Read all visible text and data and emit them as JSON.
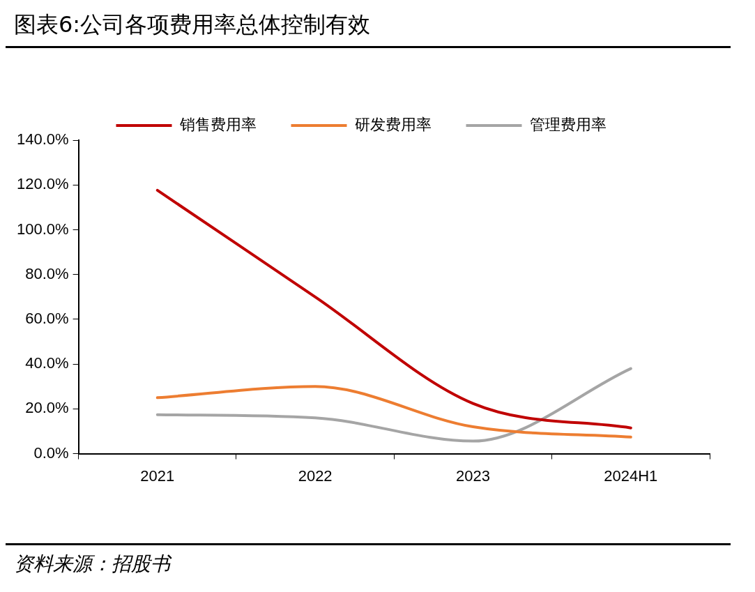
{
  "chart_data": {
    "type": "line",
    "title": "图表6:公司各项费用率总体控制有效",
    "annotations": [
      "资料来源：招股书"
    ],
    "categories": [
      "2021",
      "2022",
      "2023",
      "2024H1"
    ],
    "series": [
      {
        "name": "销售费用率",
        "color": "#c00000",
        "values": [
          117.6,
          70,
          22.4,
          11.5
        ]
      },
      {
        "name": "研发费用率",
        "color": "#ed7d31",
        "values": [
          25,
          30,
          12,
          7.4
        ]
      },
      {
        "name": "管理费用率",
        "color": "#a5a5a5",
        "values": [
          17.4,
          16,
          5.6,
          38
        ]
      }
    ],
    "ylim": [
      0,
      140
    ],
    "yticks": [
      {
        "value": 0,
        "label": "0.0%"
      },
      {
        "value": 20,
        "label": "20.0%"
      },
      {
        "value": 40,
        "label": "40.0%"
      },
      {
        "value": 60,
        "label": "60.0%"
      },
      {
        "value": 80,
        "label": "80.0%"
      },
      {
        "value": 100,
        "label": "100.0%"
      },
      {
        "value": 120,
        "label": "120.0%"
      },
      {
        "value": 140,
        "label": "140.0%"
      }
    ],
    "grid": false,
    "legend": "top",
    "marker": "none",
    "line_style": "solid"
  }
}
